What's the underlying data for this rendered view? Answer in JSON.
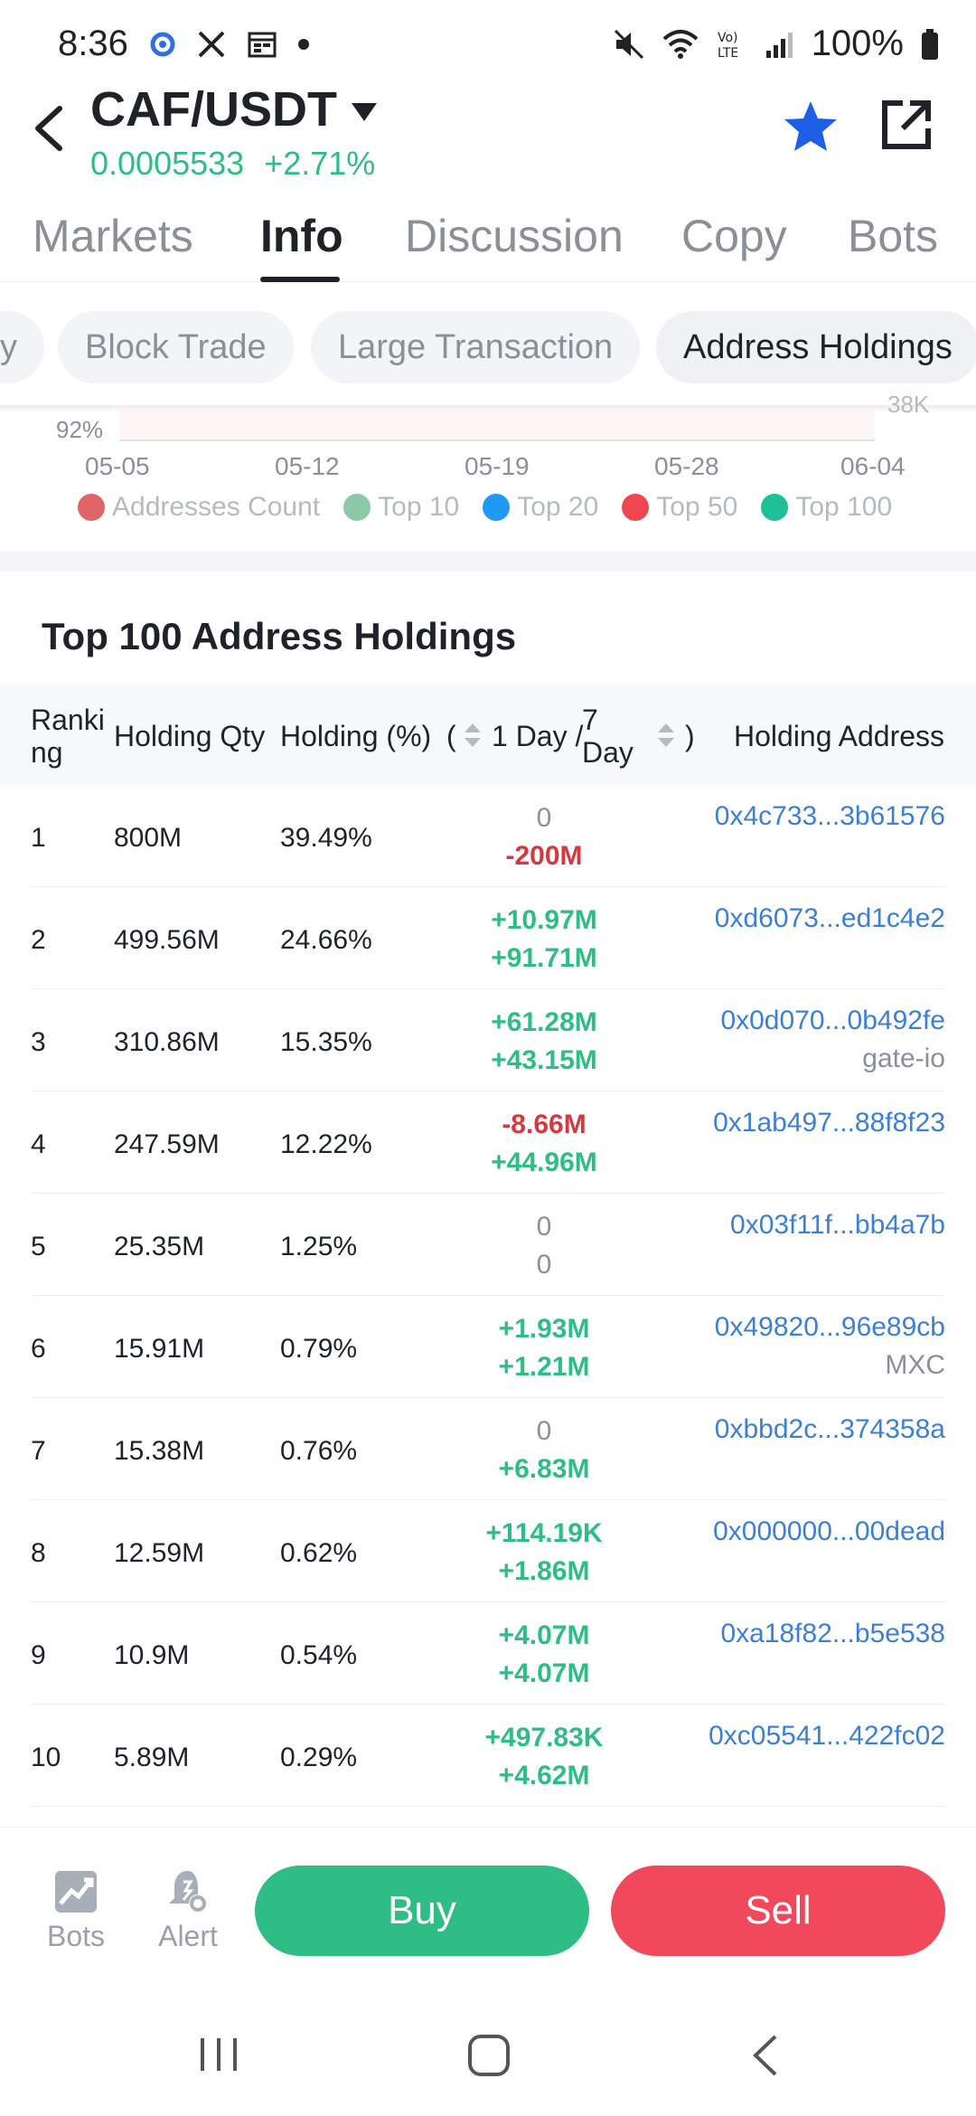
{
  "status_bar": {
    "time": "8:36",
    "battery": "100%",
    "icons": [
      "google-icon",
      "x-icon",
      "calendar-icon",
      "dot-icon",
      "mute-icon",
      "wifi-icon",
      "volte-icon",
      "signal-icon",
      "battery-icon"
    ]
  },
  "header": {
    "pair": "CAF/USDT",
    "price": "0.0005533",
    "change": "+2.71%",
    "accent_green": "#2ebd85",
    "star_color": "#1e5fe8"
  },
  "tabs": [
    {
      "label": "Markets"
    },
    {
      "label": "Info"
    },
    {
      "label": "Discussion"
    },
    {
      "label": "Copy"
    },
    {
      "label": "Bots"
    }
  ],
  "active_tab": "Info",
  "chips": [
    {
      "label": "y"
    },
    {
      "label": "Block Trade"
    },
    {
      "label": "Large Transaction"
    },
    {
      "label": "Address Holdings"
    }
  ],
  "active_chip": "Address Holdings",
  "chart": {
    "y_left_label": "92%",
    "y_right_label": "38K",
    "x_ticks": [
      "05-05",
      "05-12",
      "05-19",
      "05-28",
      "06-04"
    ],
    "legend": [
      {
        "name": "Addresses Count",
        "color": "#e06666"
      },
      {
        "name": "Top 10",
        "color": "#8cc9a8"
      },
      {
        "name": "Top 20",
        "color": "#1e9bf0"
      },
      {
        "name": "Top 50",
        "color": "#f0464f"
      },
      {
        "name": "Top 100",
        "color": "#1fbf9a"
      }
    ]
  },
  "table": {
    "title": "Top 100 Address Holdings",
    "headers": {
      "ranking_1": "Ranki",
      "ranking_2": "ng",
      "qty": "Holding Qty",
      "pct": "Holding (%)",
      "paren_open": "(",
      "day1": "1 Day /",
      "day7_1": "7",
      "day7_2": "Day",
      "paren_close": ")",
      "address": "Holding Address"
    },
    "rows": [
      {
        "rank": "1",
        "qty": "800M",
        "pct": "39.49%",
        "d1": "0",
        "d7": "-200M",
        "address": "0x4c733...3b61576",
        "tag": ""
      },
      {
        "rank": "2",
        "qty": "499.56M",
        "pct": "24.66%",
        "d1": "+10.97M",
        "d7": "+91.71M",
        "address": "0xd6073...ed1c4e2",
        "tag": ""
      },
      {
        "rank": "3",
        "qty": "310.86M",
        "pct": "15.35%",
        "d1": "+61.28M",
        "d7": "+43.15M",
        "address": "0x0d070...0b492fe",
        "tag": "gate-io"
      },
      {
        "rank": "4",
        "qty": "247.59M",
        "pct": "12.22%",
        "d1": "-8.66M",
        "d7": "+44.96M",
        "address": "0x1ab497...88f8f23",
        "tag": ""
      },
      {
        "rank": "5",
        "qty": "25.35M",
        "pct": "1.25%",
        "d1": "0",
        "d7": "0",
        "address": "0x03f11f...bb4a7b",
        "tag": ""
      },
      {
        "rank": "6",
        "qty": "15.91M",
        "pct": "0.79%",
        "d1": "+1.93M",
        "d7": "+1.21M",
        "address": "0x49820...96e89cb",
        "tag": "MXC"
      },
      {
        "rank": "7",
        "qty": "15.38M",
        "pct": "0.76%",
        "d1": "0",
        "d7": "+6.83M",
        "address": "0xbbd2c...374358a",
        "tag": ""
      },
      {
        "rank": "8",
        "qty": "12.59M",
        "pct": "0.62%",
        "d1": "+114.19K",
        "d7": "+1.86M",
        "address": "0x000000...00dead",
        "tag": ""
      },
      {
        "rank": "9",
        "qty": "10.9M",
        "pct": "0.54%",
        "d1": "+4.07M",
        "d7": "+4.07M",
        "address": "0xa18f82...b5e538",
        "tag": ""
      },
      {
        "rank": "10",
        "qty": "5.89M",
        "pct": "0.29%",
        "d1": "+497.83K",
        "d7": "+4.62M",
        "address": "0xc05541...422fc02",
        "tag": ""
      }
    ]
  },
  "bottom_bar": {
    "bots_label": "Bots",
    "alert_label": "Alert",
    "buy_label": "Buy",
    "sell_label": "Sell",
    "buy_color": "#2ebd85",
    "sell_color": "#f1485c"
  }
}
